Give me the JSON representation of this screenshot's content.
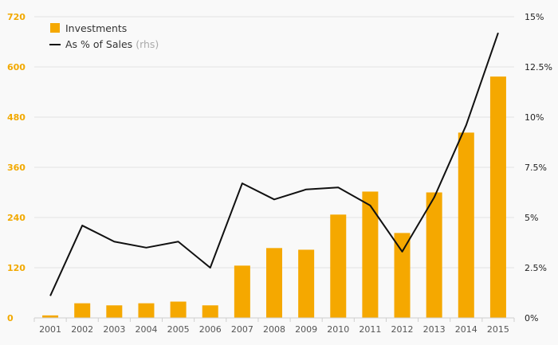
{
  "chart_data": {
    "type": "bar",
    "categories": [
      "2001",
      "2002",
      "2003",
      "2004",
      "2005",
      "2006",
      "2007",
      "2008",
      "2009",
      "2010",
      "2011",
      "2012",
      "2013",
      "2014",
      "2015"
    ],
    "series": [
      {
        "name": "Investments",
        "type": "bar",
        "axis": "left",
        "values": [
          6,
          35,
          30,
          35,
          39,
          30,
          125,
          167,
          163,
          247,
          302,
          203,
          300,
          443,
          577
        ]
      },
      {
        "name": "As % of Sales",
        "type": "line",
        "axis": "right",
        "values": [
          1.1,
          4.6,
          3.8,
          3.5,
          3.8,
          2.5,
          6.7,
          5.9,
          6.4,
          6.5,
          5.6,
          3.3,
          6.0,
          9.6,
          14.2
        ]
      }
    ],
    "legend": {
      "items": [
        {
          "label": "Investments",
          "suffix": ""
        },
        {
          "label": "As % of Sales",
          "suffix": "(rhs)"
        }
      ],
      "position": "top-left"
    },
    "y_left": {
      "ylim": [
        0,
        720
      ],
      "ticks": [
        0,
        120,
        240,
        360,
        480,
        600,
        720
      ],
      "tick_labels": [
        "0",
        "120",
        "240",
        "360",
        "480",
        "600",
        "720"
      ]
    },
    "y_right": {
      "ylim": [
        0,
        15
      ],
      "ticks": [
        0,
        2.5,
        5,
        7.5,
        10,
        12.5,
        15
      ],
      "tick_labels": [
        "0%",
        "2.5%",
        "5%",
        "7.5%",
        "10%",
        "12.5%",
        "15%"
      ]
    },
    "grid": true,
    "colors": {
      "bar": "#f5a800",
      "line": "#111111",
      "left_tick": "#f2a900",
      "grid": "#e3e3e3"
    }
  }
}
